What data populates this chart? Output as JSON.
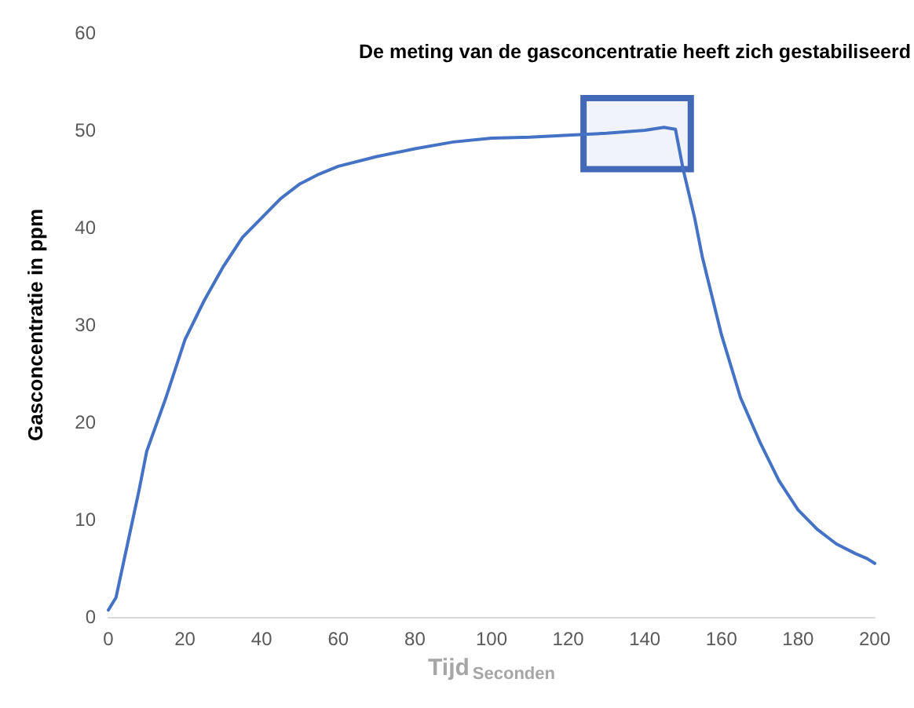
{
  "chart_data": {
    "type": "line",
    "xlabel": "Tijd$_{Seconden}$",
    "ylabel": "Gasconcentratie in ppm",
    "x": [
      0,
      2,
      5,
      8,
      10,
      15,
      20,
      25,
      30,
      35,
      40,
      45,
      50,
      55,
      60,
      70,
      80,
      90,
      100,
      110,
      120,
      130,
      140,
      145,
      148,
      150,
      153,
      155,
      160,
      165,
      170,
      175,
      180,
      185,
      190,
      195,
      198,
      200
    ],
    "series": [
      {
        "color": "#4472c4",
        "values": [
          0.7,
          2,
          7.5,
          13,
          17,
          22.5,
          28.5,
          32.5,
          36,
          39,
          41,
          43,
          44.5,
          45.5,
          46.3,
          47.3,
          48.1,
          48.8,
          49.2,
          49.3,
          49.5,
          49.7,
          50,
          50.3,
          50.1,
          46,
          41,
          37,
          29,
          22.5,
          18,
          14,
          11,
          9,
          7.5,
          6.5,
          6,
          5.5
        ]
      }
    ],
    "xlim": [
      0,
      200
    ],
    "xticks": [
      0,
      20,
      40,
      60,
      80,
      100,
      120,
      140,
      160,
      180,
      200
    ],
    "ylim": [
      0,
      60
    ],
    "yticks": [
      0,
      10,
      20,
      30,
      40,
      50,
      60
    ],
    "grid": false,
    "marker": "none",
    "line_style": "solid",
    "bands": [
      {
        "axis": "x",
        "from": 124,
        "to": 152,
        "color": "#4468b8"
      }
    ],
    "annotations": [
      "De meting van de gasconcentratie heeft zich gestabiliseerd"
    ]
  }
}
